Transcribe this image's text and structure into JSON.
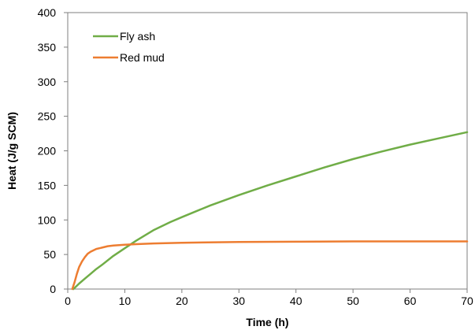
{
  "chart_data": {
    "type": "line",
    "title": "",
    "xlabel": "Time (h)",
    "ylabel": "Heat (J/g SCM)",
    "xlim": [
      0,
      70
    ],
    "ylim": [
      0,
      400
    ],
    "xticks": [
      0,
      10,
      20,
      30,
      40,
      50,
      60,
      70
    ],
    "yticks": [
      0,
      50,
      100,
      150,
      200,
      250,
      300,
      350,
      400
    ],
    "grid": false,
    "legend_position": "top-left",
    "series": [
      {
        "name": "Fly ash",
        "color": "#70ad47",
        "x": [
          1,
          2,
          3,
          4,
          5,
          6,
          8,
          10,
          12,
          15,
          18,
          20,
          25,
          30,
          35,
          40,
          45,
          50,
          55,
          60,
          65,
          70
        ],
        "y": [
          0,
          8,
          15,
          22,
          29,
          35,
          48,
          59,
          70,
          85,
          97,
          104,
          121,
          136,
          150,
          163,
          176,
          188,
          199,
          209,
          218,
          227
        ]
      },
      {
        "name": "Red mud",
        "color": "#ed7d31",
        "x": [
          0.8,
          1.2,
          1.6,
          2,
          2.5,
          3,
          3.5,
          4,
          5,
          6,
          7,
          8,
          10,
          12,
          15,
          20,
          30,
          40,
          50,
          60,
          70
        ],
        "y": [
          0,
          10,
          22,
          32,
          40,
          46,
          51,
          54,
          58,
          60,
          62,
          63,
          64,
          65,
          66,
          67,
          68,
          68.5,
          69,
          69,
          69
        ]
      }
    ]
  }
}
